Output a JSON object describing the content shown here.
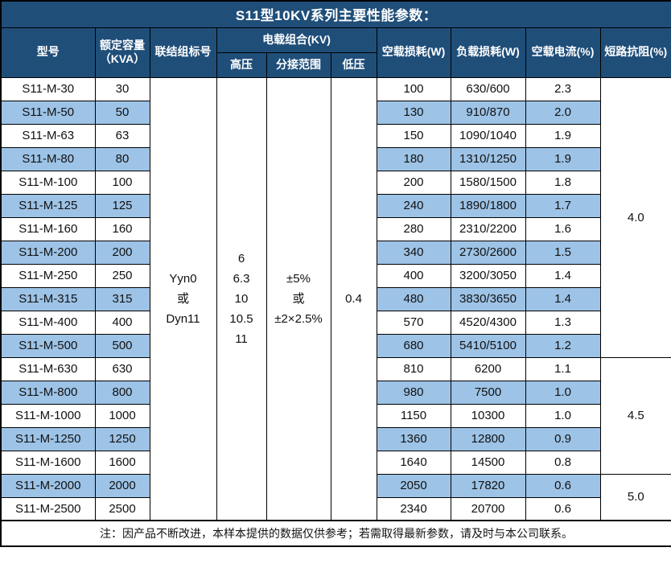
{
  "title": "S11型10KV系列主要性能参数：",
  "colors": {
    "header_bg": "#1F4E79",
    "alt_row_bg": "#9DC3E6",
    "border": "#000000",
    "header_text": "#ffffff",
    "body_text": "#111111"
  },
  "columns": {
    "model": "型号",
    "capacity_line1": "额定容量",
    "capacity_line2": "（KVA）",
    "connection": "联结组标号",
    "load_combo": "电载组合(KV)",
    "hv": "高压",
    "tap_range": "分接范围",
    "lv": "低压",
    "no_load_loss": "空载损耗(W)",
    "load_loss": "负载损耗(W)",
    "no_load_current": "空载电流(%)",
    "impedance": "短路抗阻(%)"
  },
  "merged": {
    "connection": [
      "Yyn0",
      "或",
      "Dyn11"
    ],
    "hv": [
      "6",
      "6.3",
      "10",
      "10.5",
      "11"
    ],
    "tap_range": [
      "±5%",
      "或",
      "±2×2.5%"
    ],
    "lv": "0.4",
    "impedance_groups": [
      {
        "value": "4.0",
        "rows": 12
      },
      {
        "value": "4.5",
        "rows": 5
      },
      {
        "value": "5.0",
        "rows": 2
      }
    ]
  },
  "rows": [
    {
      "model": "S11-M-30",
      "capacity": "30",
      "no_load_loss": "100",
      "load_loss": "630/600",
      "no_load_current": "2.3"
    },
    {
      "model": "S11-M-50",
      "capacity": "50",
      "no_load_loss": "130",
      "load_loss": "910/870",
      "no_load_current": "2.0"
    },
    {
      "model": "S11-M-63",
      "capacity": "63",
      "no_load_loss": "150",
      "load_loss": "1090/1040",
      "no_load_current": "1.9"
    },
    {
      "model": "S11-M-80",
      "capacity": "80",
      "no_load_loss": "180",
      "load_loss": "1310/1250",
      "no_load_current": "1.9"
    },
    {
      "model": "S11-M-100",
      "capacity": "100",
      "no_load_loss": "200",
      "load_loss": "1580/1500",
      "no_load_current": "1.8"
    },
    {
      "model": "S11-M-125",
      "capacity": "125",
      "no_load_loss": "240",
      "load_loss": "1890/1800",
      "no_load_current": "1.7"
    },
    {
      "model": "S11-M-160",
      "capacity": "160",
      "no_load_loss": "280",
      "load_loss": "2310/2200",
      "no_load_current": "1.6"
    },
    {
      "model": "S11-M-200",
      "capacity": "200",
      "no_load_loss": "340",
      "load_loss": "2730/2600",
      "no_load_current": "1.5"
    },
    {
      "model": "S11-M-250",
      "capacity": "250",
      "no_load_loss": "400",
      "load_loss": "3200/3050",
      "no_load_current": "1.4"
    },
    {
      "model": "S11-M-315",
      "capacity": "315",
      "no_load_loss": "480",
      "load_loss": "3830/3650",
      "no_load_current": "1.4"
    },
    {
      "model": "S11-M-400",
      "capacity": "400",
      "no_load_loss": "570",
      "load_loss": "4520/4300",
      "no_load_current": "1.3"
    },
    {
      "model": "S11-M-500",
      "capacity": "500",
      "no_load_loss": "680",
      "load_loss": "5410/5100",
      "no_load_current": "1.2"
    },
    {
      "model": "S11-M-630",
      "capacity": "630",
      "no_load_loss": "810",
      "load_loss": "6200",
      "no_load_current": "1.1"
    },
    {
      "model": "S11-M-800",
      "capacity": "800",
      "no_load_loss": "980",
      "load_loss": "7500",
      "no_load_current": "1.0"
    },
    {
      "model": "S11-M-1000",
      "capacity": "1000",
      "no_load_loss": "1150",
      "load_loss": "10300",
      "no_load_current": "1.0"
    },
    {
      "model": "S11-M-1250",
      "capacity": "1250",
      "no_load_loss": "1360",
      "load_loss": "12800",
      "no_load_current": "0.9"
    },
    {
      "model": "S11-M-1600",
      "capacity": "1600",
      "no_load_loss": "1640",
      "load_loss": "14500",
      "no_load_current": "0.8"
    },
    {
      "model": "S11-M-2000",
      "capacity": "2000",
      "no_load_loss": "2050",
      "load_loss": "17820",
      "no_load_current": "0.6"
    },
    {
      "model": "S11-M-2500",
      "capacity": "2500",
      "no_load_loss": "2340",
      "load_loss": "20700",
      "no_load_current": "0.6"
    }
  ],
  "note": "注：因产品不断改进，本样本提供的数据仅供参考；若需取得最新参数，请及时与本公司联系。"
}
